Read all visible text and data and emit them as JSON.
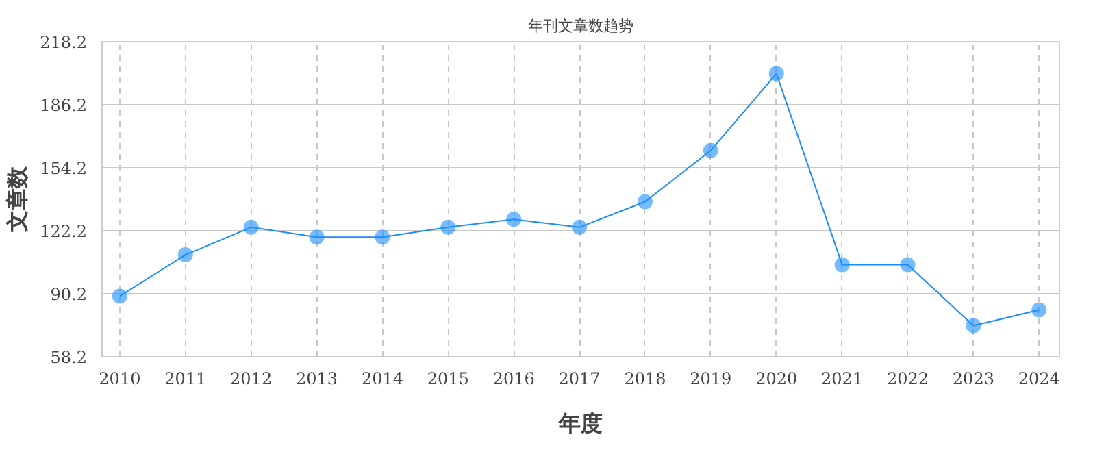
{
  "chart_data": {
    "type": "line",
    "title": "年刊文章数趋势",
    "xlabel": "年度",
    "ylabel": "文章数",
    "categories": [
      "2010",
      "2011",
      "2012",
      "2013",
      "2014",
      "2015",
      "2016",
      "2017",
      "2018",
      "2019",
      "2020",
      "2021",
      "2022",
      "2023",
      "2024"
    ],
    "series": [
      {
        "color": "#1a8cff",
        "values": [
          89,
          110,
          124,
          119,
          119,
          124,
          128,
          124,
          137,
          163,
          202,
          105,
          105,
          74,
          82
        ]
      }
    ],
    "ylim": [
      58.2,
      218.2
    ],
    "yticks": [
      58.2,
      90.2,
      122.2,
      154.2,
      186.2,
      218.2
    ],
    "grid": true,
    "marker": "circle",
    "line_style": "solid"
  }
}
